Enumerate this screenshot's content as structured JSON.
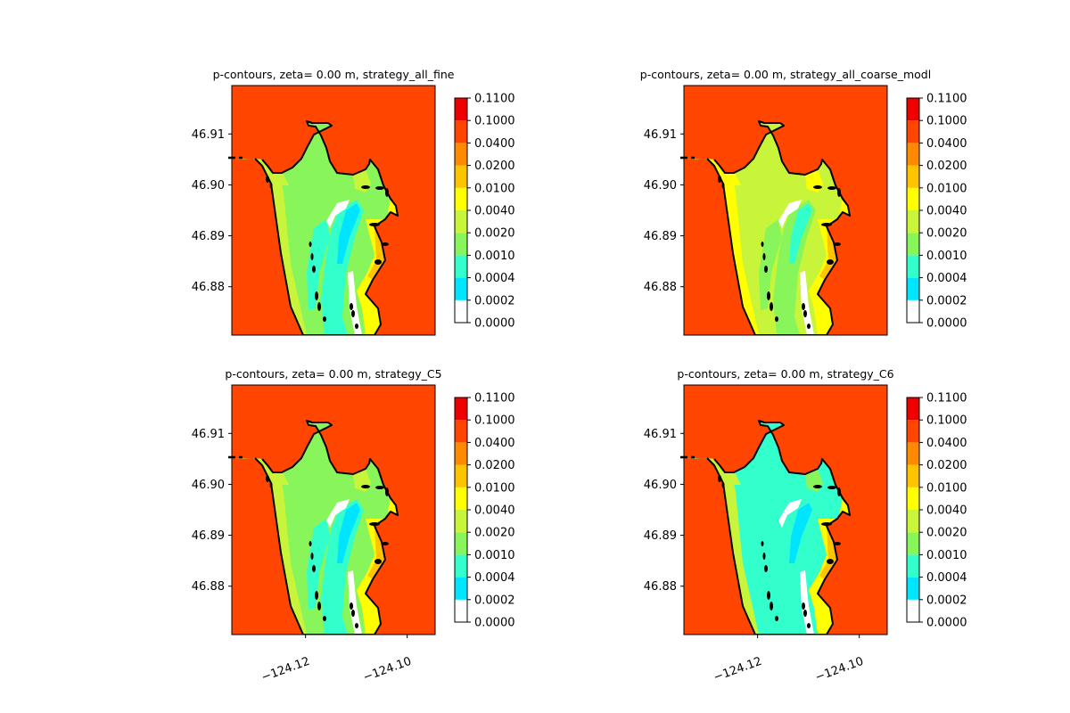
{
  "figure": {
    "columns": 2
  },
  "colorbar": {
    "levels": [
      "0.0000",
      "0.0002",
      "0.0004",
      "0.0010",
      "0.0020",
      "0.0040",
      "0.0100",
      "0.0200",
      "0.0400",
      "0.1000",
      "0.1100"
    ],
    "colors": [
      "#ffffff",
      "#00e5ff",
      "#33ffcc",
      "#88f55a",
      "#c8f53a",
      "#ffff00",
      "#ffc400",
      "#ff8a00",
      "#ff4500",
      "#ee0000"
    ]
  },
  "map_colors": {
    "land": "#ff4500",
    "outline": "#000000"
  },
  "chart_data": [
    {
      "type": "heatmap",
      "title": "p-contours, zeta= 0.00 m, strategy_all_fine",
      "ylim": [
        46.8705,
        46.9195
      ],
      "xlim": [
        -124.1345,
        -124.0945
      ],
      "yticks": [
        "46.91",
        "46.90",
        "46.89",
        "46.88"
      ],
      "xticks": [],
      "interior_class": "mid",
      "xlabels_shown": false
    },
    {
      "type": "heatmap",
      "title": "p-contours, zeta= 0.00 m, strategy_all_coarse_modl",
      "ylim": [
        46.8705,
        46.9195
      ],
      "xlim": [
        -124.1345,
        -124.0945
      ],
      "yticks": [
        "46.91",
        "46.90",
        "46.89",
        "46.88"
      ],
      "xticks": [],
      "interior_class": "high",
      "xlabels_shown": false
    },
    {
      "type": "heatmap",
      "title": "p-contours, zeta= 0.00 m, strategy_C5",
      "ylim": [
        46.8705,
        46.9195
      ],
      "xlim": [
        -124.1345,
        -124.0945
      ],
      "yticks": [
        "46.91",
        "46.90",
        "46.89",
        "46.88"
      ],
      "xticks": [
        "−124.12",
        "−124.10"
      ],
      "interior_class": "mid",
      "xlabels_shown": true
    },
    {
      "type": "heatmap",
      "title": "p-contours, zeta= 0.00 m, strategy_C6",
      "ylim": [
        46.8705,
        46.9195
      ],
      "xlim": [
        -124.1345,
        -124.0945
      ],
      "yticks": [
        "46.91",
        "46.90",
        "46.89",
        "46.88"
      ],
      "xticks": [
        "−124.12",
        "−124.10"
      ],
      "interior_class": "low",
      "xlabels_shown": true
    }
  ]
}
